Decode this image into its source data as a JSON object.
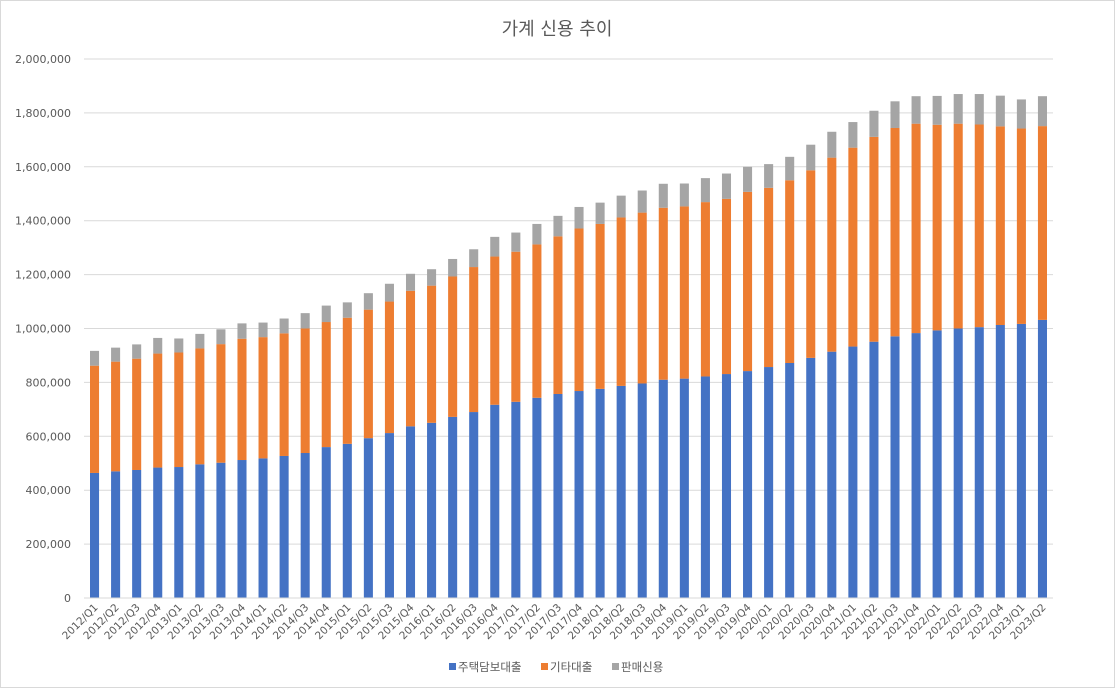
{
  "chart_data": {
    "type": "bar",
    "stacked": true,
    "title": "가계 신용 추이",
    "xlabel": "",
    "ylabel": "",
    "ylim": [
      0,
      2000000
    ],
    "yticks": [
      0,
      200000,
      400000,
      600000,
      800000,
      1000000,
      1200000,
      1400000,
      1600000,
      1800000,
      2000000
    ],
    "ytick_labels": [
      "0",
      "200,000",
      "400,000",
      "600,000",
      "800,000",
      "1,000,000",
      "1,200,000",
      "1,400,000",
      "1,600,000",
      "1,800,000",
      "2,000,000"
    ],
    "grid": true,
    "legend_position": "bottom",
    "categories": [
      "2012/Q1",
      "2012/Q2",
      "2012/Q3",
      "2012/Q4",
      "2013/Q1",
      "2013/Q2",
      "2013/Q3",
      "2013/Q4",
      "2014/Q1",
      "2014/Q2",
      "2014/Q3",
      "2014/Q4",
      "2015/Q1",
      "2015/Q2",
      "2015/Q3",
      "2015/Q4",
      "2016/Q1",
      "2016/Q2",
      "2016/Q3",
      "2016/Q4",
      "2017/Q1",
      "2017/Q2",
      "2017/Q3",
      "2017/Q4",
      "2018/Q1",
      "2018/Q2",
      "2018/Q3",
      "2018/Q4",
      "2019/Q1",
      "2019/Q2",
      "2019/Q3",
      "2019/Q4",
      "2020/Q1",
      "2020/Q2",
      "2020/Q3",
      "2020/Q4",
      "2021/Q1",
      "2021/Q2",
      "2021/Q3",
      "2021/Q4",
      "2022/Q1",
      "2022/Q2",
      "2022/Q3",
      "2022/Q4",
      "2023/Q1",
      "2023/Q2"
    ],
    "series": [
      {
        "name": "주택담보대출",
        "color": "#4472c4",
        "values": [
          464000,
          470000,
          475000,
          484000,
          486000,
          496000,
          502000,
          512000,
          518000,
          527000,
          538000,
          560000,
          572000,
          593000,
          612000,
          637000,
          650000,
          672000,
          690000,
          717000,
          728000,
          743000,
          757000,
          768000,
          776000,
          787000,
          796000,
          810000,
          814000,
          822000,
          831000,
          842000,
          857000,
          872000,
          891000,
          914000,
          933000,
          951000,
          971000,
          983000,
          993000,
          1000000,
          1005000,
          1013000,
          1017000,
          1032000
        ]
      },
      {
        "name": "기타대출",
        "color": "#ed7d31",
        "values": [
          398000,
          407000,
          413000,
          423000,
          425000,
          430000,
          440000,
          450000,
          450000,
          455000,
          462000,
          464000,
          468000,
          477000,
          488000,
          503000,
          509000,
          521000,
          538000,
          550000,
          557000,
          569000,
          585000,
          603000,
          612000,
          625000,
          634000,
          638000,
          639000,
          647000,
          650000,
          665000,
          665000,
          678000,
          696000,
          720000,
          738000,
          760000,
          773000,
          777000,
          763000,
          760000,
          752000,
          737000,
          725000,
          719000
        ]
      },
      {
        "name": "판매신용",
        "color": "#a5a5a5",
        "values": [
          55000,
          52000,
          53000,
          58000,
          52000,
          54000,
          55000,
          57000,
          54000,
          55000,
          57000,
          61000,
          57000,
          61000,
          66000,
          63000,
          61000,
          65000,
          66000,
          73000,
          71000,
          76000,
          76000,
          80000,
          79000,
          81000,
          82000,
          89000,
          85000,
          89000,
          94000,
          93000,
          88000,
          87000,
          95000,
          96000,
          95000,
          97000,
          99000,
          102000,
          107000,
          110000,
          113000,
          114000,
          108000,
          111000
        ]
      }
    ]
  }
}
